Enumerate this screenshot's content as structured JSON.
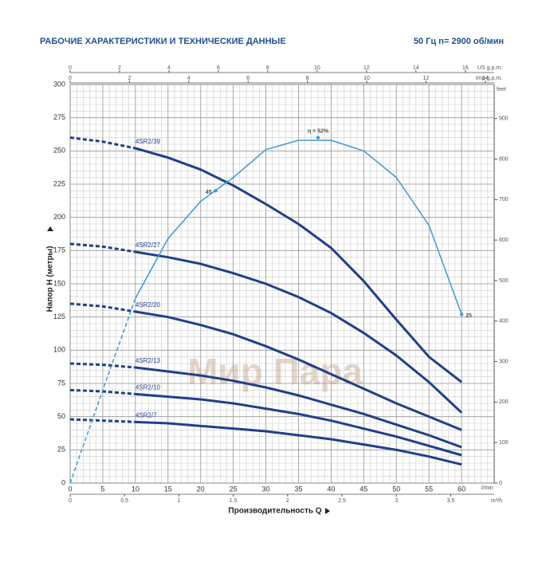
{
  "chart_data": {
    "type": "line",
    "title": "РАБОЧИЕ ХАРАКТЕРИСТИКИ И ТЕХНИЧЕСКИЕ ДАННЫЕ",
    "subtitle": "50 Гц   n= 2900 об/мин",
    "xlabel": "Производительность Q",
    "ylabel": "Напор H (метры)",
    "xunit": "l/min",
    "watermark": "Мир Пара",
    "x": [
      0,
      5,
      10,
      15,
      20,
      25,
      30,
      35,
      40,
      45,
      50,
      55,
      60
    ],
    "xlim": [
      0,
      65
    ],
    "xticks": [
      0,
      5,
      10,
      15,
      20,
      25,
      30,
      35,
      40,
      45,
      50,
      55,
      60
    ],
    "ylim": [
      0,
      300
    ],
    "yticks": [
      0,
      25,
      50,
      75,
      100,
      125,
      150,
      175,
      200,
      225,
      250,
      275,
      300
    ],
    "y2label": "feet",
    "y2lim": [
      0,
      984
    ],
    "y2ticks": [
      0,
      100,
      200,
      300,
      400,
      500,
      600,
      700,
      800,
      900
    ],
    "extra_x_axes": [
      {
        "label": "US g.p.m.",
        "position": "top",
        "lim": [
          0,
          17.17
        ],
        "ticks": [
          0,
          2,
          4,
          6,
          8,
          10,
          12,
          14,
          16
        ]
      },
      {
        "label": "Imp g.p.m.",
        "position": "top",
        "lim": [
          0,
          14.3
        ],
        "ticks": [
          0,
          2,
          4,
          6,
          8,
          10,
          12,
          14
        ]
      },
      {
        "label": "m³/h",
        "position": "bottom",
        "lim": [
          0,
          3.9
        ],
        "ticks": [
          0,
          0.5,
          1,
          1.5,
          2,
          2.5,
          3,
          3.5
        ]
      }
    ],
    "grid": true,
    "minor_grid": {
      "x": 1,
      "y": 5
    },
    "dashed_below_x": 10,
    "series": [
      {
        "name": "4SR2/39",
        "color": "#203f8c",
        "values": [
          260,
          257,
          252,
          245,
          236,
          224,
          210,
          195,
          177,
          152,
          123,
          95,
          76
        ]
      },
      {
        "name": "4SR2/27",
        "color": "#203f8c",
        "values": [
          180,
          178,
          174,
          170,
          165,
          158,
          150,
          140,
          128,
          113,
          96,
          76,
          53
        ]
      },
      {
        "name": "4SR2/20",
        "color": "#203f8c",
        "values": [
          135,
          133,
          129,
          125,
          119,
          112,
          103,
          93,
          82,
          71,
          60,
          50,
          40
        ]
      },
      {
        "name": "4SR2/13",
        "color": "#203f8c",
        "values": [
          90,
          89,
          87,
          84,
          81,
          77,
          72,
          66,
          59,
          52,
          44,
          36,
          27
        ]
      },
      {
        "name": "4SR2/10",
        "color": "#203f8c",
        "values": [
          70,
          69,
          67,
          65,
          63,
          60,
          56,
          52,
          47,
          41,
          35,
          28,
          21
        ]
      },
      {
        "name": "4SR2/7",
        "color": "#203f8c",
        "values": [
          48,
          47,
          46,
          45,
          43,
          41,
          39,
          36,
          33,
          29,
          25,
          20,
          14
        ]
      }
    ],
    "efficiency_curve": {
      "color": "#3b9ad8",
      "values": [
        0,
        70,
        139,
        184,
        212,
        230,
        251,
        258,
        258,
        250,
        230,
        194,
        127
      ],
      "annotations": [
        {
          "text": "45",
          "x": 22.3,
          "y": 220
        },
        {
          "text": "η = 52%",
          "x": 38,
          "y": 260
        },
        {
          "text": "25",
          "x": 60,
          "y": 127
        }
      ]
    }
  }
}
